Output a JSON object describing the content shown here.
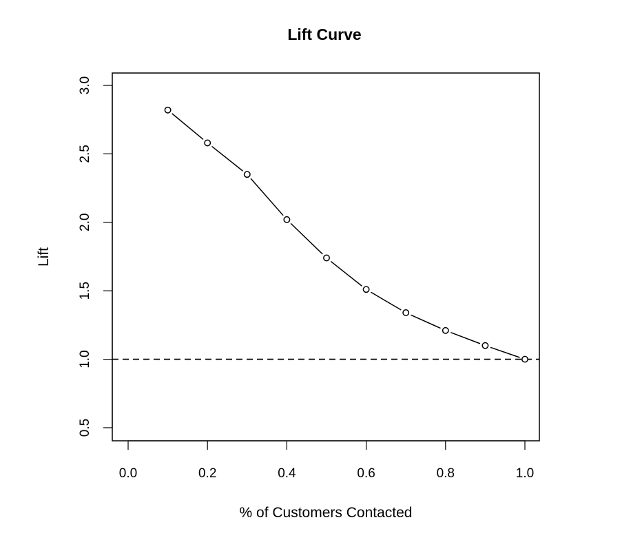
{
  "chart_data": {
    "type": "line",
    "title": "Lift Curve",
    "xlabel": "% of Customers Contacted",
    "ylabel": "Lift",
    "xlim": [
      0.0,
      1.0
    ],
    "ylim": [
      0.5,
      3.0
    ],
    "x_ticks": [
      "0.0",
      "0.2",
      "0.4",
      "0.6",
      "0.8",
      "1.0"
    ],
    "y_ticks": [
      "0.5",
      "1.0",
      "1.5",
      "2.0",
      "2.5",
      "3.0"
    ],
    "series": [
      {
        "x": [
          0.1,
          0.2,
          0.3,
          0.4,
          0.5,
          0.6,
          0.7,
          0.8,
          0.9,
          1.0
        ],
        "values": [
          2.82,
          2.58,
          2.35,
          2.02,
          1.74,
          1.51,
          1.34,
          1.21,
          1.1,
          1.0
        ],
        "line_style": "solid",
        "marker": "open-circle",
        "color": "#000000"
      }
    ],
    "reference_line": {
      "y": 1.0,
      "line_style": "dashed",
      "color": "#000000"
    },
    "grid": false,
    "legend": "none"
  }
}
